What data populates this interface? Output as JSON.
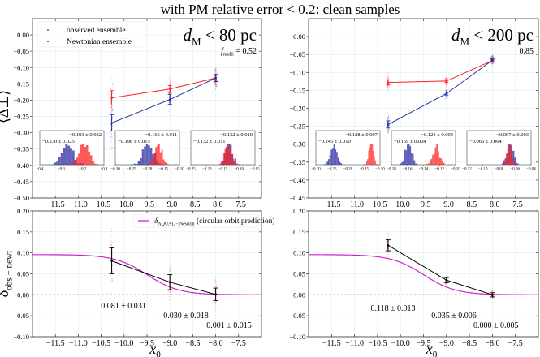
{
  "figure_title": "with PM relative error < 0.2: clean samples",
  "colors": {
    "observed": "#ff2020",
    "newtonian": "#2a2aa0",
    "overlap": "#b00030",
    "aqual": "#cc22cc",
    "measured": "#000000",
    "grid": "#d8f2f2"
  },
  "chart_data": [
    {
      "id": "top-left",
      "type": "scatter",
      "panel_label": "d_M < 80 pc",
      "panel_label_parts": {
        "var": "d",
        "sub": "M",
        "rest": " < 80 pc"
      },
      "sub_annotation": {
        "var": "f",
        "sub": "multi",
        "rest": " = 0.52"
      },
      "ylabel": "⟨Δ⊥⟩",
      "xlim": [
        -12.0,
        -7.0
      ],
      "ylim": [
        -0.5,
        0.05
      ],
      "xticks": [
        -11.5,
        -11.0,
        -10.5,
        -10.0,
        -9.5,
        -9.0,
        -8.5,
        -8.0,
        -7.5
      ],
      "yticks": [
        0.0,
        -0.05,
        -0.1,
        -0.15,
        -0.2,
        -0.25,
        -0.3,
        -0.35,
        -0.4,
        -0.45,
        -0.5
      ],
      "ytick_labels": [
        "0.00",
        "−0.05",
        "−0.10",
        "−0.15",
        "−0.20",
        "−0.25",
        "−0.30",
        "−0.35",
        "−0.40",
        "−0.45",
        "−0.50"
      ],
      "xtick_labels": [
        "−11.5",
        "−11.0",
        "−10.5",
        "−10.0",
        "−9.5",
        "−9.0",
        "−8.5",
        "−8.0",
        "−7.5"
      ],
      "grid": true,
      "legend": {
        "placement": "top-left",
        "entries": [
          "observed ensemble",
          "Newtonian ensemble"
        ]
      },
      "series": [
        {
          "name": "observed ensemble",
          "x": [
            -10.27,
            -9.0,
            -8.0
          ],
          "y": [
            -0.193,
            -0.166,
            -0.132
          ],
          "err": [
            0.022,
            0.011,
            0.01
          ],
          "scatter_spread": [
            0.06,
            0.03,
            0.025
          ]
        },
        {
          "name": "Newtonian ensemble",
          "x": [
            -10.27,
            -9.0,
            -8.0
          ],
          "y": [
            -0.27,
            -0.198,
            -0.132
          ],
          "err": [
            0.025,
            0.015,
            0.011
          ],
          "scatter_spread": [
            0.07,
            0.035,
            0.025
          ]
        }
      ],
      "insets": [
        {
          "xlim": [
            -0.4,
            -0.1
          ],
          "xticks": [
            -0.4,
            -0.3,
            -0.2,
            -0.1
          ],
          "xtick_labels": [
            "−0.4",
            "−0.3",
            "−0.2",
            "−0.1"
          ],
          "obs_label": "−0.193 ± 0.022",
          "newt_label": "−0.270 ± 0.025",
          "obs_mean": -0.193,
          "obs_sd": 0.022,
          "newt_mean": -0.27,
          "newt_sd": 0.025
        },
        {
          "xlim": [
            -0.3,
            -0.1
          ],
          "xticks": [
            -0.3,
            -0.25,
            -0.2,
            -0.15,
            -0.1
          ],
          "xtick_labels": [
            "−0.30",
            "−0.25",
            "−0.20",
            "−0.15",
            "−0.10"
          ],
          "obs_label": "−0.166 ± 0.011",
          "newt_label": "−0.198 ± 0.015",
          "obs_mean": -0.166,
          "obs_sd": 0.011,
          "newt_mean": -0.198,
          "newt_sd": 0.015
        },
        {
          "xlim": [
            -0.25,
            -0.05
          ],
          "xticks": [
            -0.25,
            -0.2,
            -0.15,
            -0.1,
            -0.05
          ],
          "xtick_labels": [
            "−0.25",
            "−0.20",
            "−0.15",
            "−0.10",
            "−0.05"
          ],
          "obs_label": "−0.132 ± 0.010",
          "newt_label": "−0.132 ± 0.011",
          "obs_mean": -0.132,
          "obs_sd": 0.01,
          "newt_mean": -0.132,
          "newt_sd": 0.011
        }
      ]
    },
    {
      "id": "top-right",
      "type": "scatter",
      "panel_label_parts": {
        "var": "d",
        "sub": "M",
        "rest": " < 200 pc"
      },
      "sub_annotation": {
        "var": "",
        "sub": "",
        "rest": "0.85"
      },
      "xlim": [
        -12.0,
        -7.0
      ],
      "ylim": [
        -0.45,
        0.05
      ],
      "xticks": [
        -11.5,
        -11.0,
        -10.5,
        -10.0,
        -9.5,
        -9.0,
        -8.5,
        -8.0,
        -7.5
      ],
      "yticks": [
        0.0,
        -0.05,
        -0.1,
        -0.15,
        -0.2,
        -0.25,
        -0.3,
        -0.35,
        -0.4,
        -0.45
      ],
      "ytick_labels": [
        "0.00",
        "−0.05",
        "−0.10",
        "−0.15",
        "−0.20",
        "−0.25",
        "−0.30",
        "−0.35",
        "−0.40",
        "−0.45"
      ],
      "xtick_labels": [
        "−11.5",
        "−11.0",
        "−10.5",
        "−10.0",
        "−9.5",
        "−9.0",
        "−8.5",
        "−8.0",
        "−7.5"
      ],
      "grid": true,
      "series": [
        {
          "name": "observed ensemble",
          "x": [
            -10.27,
            -9.0,
            -8.0
          ],
          "y": [
            -0.128,
            -0.124,
            -0.067
          ],
          "err": [
            0.007,
            0.004,
            0.003
          ],
          "scatter_spread": [
            0.02,
            0.01,
            0.01
          ]
        },
        {
          "name": "Newtonian ensemble",
          "x": [
            -10.27,
            -9.0,
            -8.0
          ],
          "y": [
            -0.245,
            -0.159,
            -0.066
          ],
          "err": [
            0.01,
            0.004,
            0.004
          ],
          "scatter_spread": [
            0.025,
            0.012,
            0.01
          ]
        }
      ],
      "insets": [
        {
          "xlim": [
            -0.3,
            -0.1
          ],
          "xticks": [
            -0.3,
            -0.25,
            -0.2,
            -0.15,
            -0.1
          ],
          "xtick_labels": [
            "−0.30",
            "−0.25",
            "−0.20",
            "−0.15",
            "−0.10"
          ],
          "obs_label": "−0.128 ± 0.007",
          "newt_label": "−0.245 ± 0.010",
          "obs_mean": -0.128,
          "obs_sd": 0.007,
          "newt_mean": -0.245,
          "newt_sd": 0.01
        },
        {
          "xlim": [
            -0.18,
            -0.1
          ],
          "xticks": [
            -0.18,
            -0.16,
            -0.14,
            -0.12,
            -0.1
          ],
          "xtick_labels": [
            "−0.18",
            "−0.16",
            "−0.14",
            "−0.12",
            "−0.10"
          ],
          "obs_label": "−0.124 ± 0.004",
          "newt_label": "−0.159 ± 0.004",
          "obs_mean": -0.124,
          "obs_sd": 0.004,
          "newt_mean": -0.159,
          "newt_sd": 0.004
        },
        {
          "xlim": [
            -0.12,
            -0.04
          ],
          "xticks": [
            -0.12,
            -0.1,
            -0.08,
            -0.06,
            -0.04
          ],
          "xtick_labels": [
            "−0.12",
            "−0.10",
            "−0.08",
            "−0.06",
            "−0.04"
          ],
          "obs_label": "−0.067 ± 0.003",
          "newt_label": "−0.066 ± 0.004",
          "obs_mean": -0.067,
          "obs_sd": 0.003,
          "newt_mean": -0.066,
          "newt_sd": 0.004
        }
      ]
    },
    {
      "id": "bottom-left",
      "type": "line",
      "ylabel": "δobs − newt",
      "ylabel_parts": {
        "var": "δ",
        "sub": "obs − newt"
      },
      "xlabel_parts": {
        "var": "x",
        "sub": "0"
      },
      "xlim": [
        -12.0,
        -7.0
      ],
      "ylim": [
        -0.1,
        0.2
      ],
      "xticks": [
        -11.5,
        -11.0,
        -10.5,
        -10.0,
        -9.5,
        -9.0,
        -8.5,
        -8.0,
        -7.5
      ],
      "xtick_labels": [
        "−11.5",
        "−11.0",
        "−10.5",
        "−10.0",
        "−9.5",
        "−9.0",
        "−8.5",
        "−8.0",
        "−7.5"
      ],
      "yticks": [
        0.2,
        0.15,
        0.1,
        0.05,
        0.0,
        -0.05,
        -0.1
      ],
      "ytick_labels": [
        "0.20",
        "0.15",
        "0.10",
        "0.05",
        "0.00",
        "−0.05",
        "−0.10"
      ],
      "grid": true,
      "legend": {
        "placement": "top-right",
        "entries": [
          "δAQUAL − Newton (circular orbit prediction)"
        ],
        "entry_parts": {
          "var": "δ",
          "sub": "AQUAL − Newton",
          "rest": " (circular orbit prediction)"
        }
      },
      "measured": {
        "x": [
          -10.27,
          -9.0,
          -8.0
        ],
        "y": [
          0.081,
          0.03,
          0.001
        ],
        "err": [
          0.031,
          0.018,
          0.015
        ],
        "labels": [
          "0.081 ± 0.031",
          "0.030 ± 0.018",
          "0.001 ± 0.015"
        ]
      },
      "aqual_prediction": {
        "plateau": 0.096,
        "transition_center": -9.5,
        "width": 0.35
      },
      "reference_line_y": 0.0
    },
    {
      "id": "bottom-right",
      "type": "line",
      "xlabel_parts": {
        "var": "x",
        "sub": "0"
      },
      "xlim": [
        -12.0,
        -7.0
      ],
      "ylim": [
        -0.1,
        0.2
      ],
      "xticks": [
        -11.5,
        -11.0,
        -10.5,
        -10.0,
        -9.5,
        -9.0,
        -8.5,
        -8.0,
        -7.5
      ],
      "xtick_labels": [
        "−11.5",
        "−11.0",
        "−10.5",
        "−10.0",
        "−9.5",
        "−9.0",
        "−8.5",
        "−8.0",
        "−7.5"
      ],
      "yticks": [
        0.2,
        0.15,
        0.1,
        0.05,
        0.0,
        -0.05,
        -0.1
      ],
      "ytick_labels": [
        "0.20",
        "0.15",
        "0.10",
        "0.05",
        "0.00",
        "−0.05",
        "−0.10"
      ],
      "grid": true,
      "measured": {
        "x": [
          -10.27,
          -9.0,
          -8.0
        ],
        "y": [
          0.118,
          0.035,
          0.0
        ],
        "err": [
          0.013,
          0.006,
          0.005
        ],
        "labels": [
          "0.118 ± 0.013",
          "0.035 ± 0.006",
          "−0.000 ± 0.005"
        ]
      },
      "aqual_prediction": {
        "plateau": 0.096,
        "transition_center": -9.5,
        "width": 0.35
      },
      "reference_line_y": 0.0
    }
  ]
}
